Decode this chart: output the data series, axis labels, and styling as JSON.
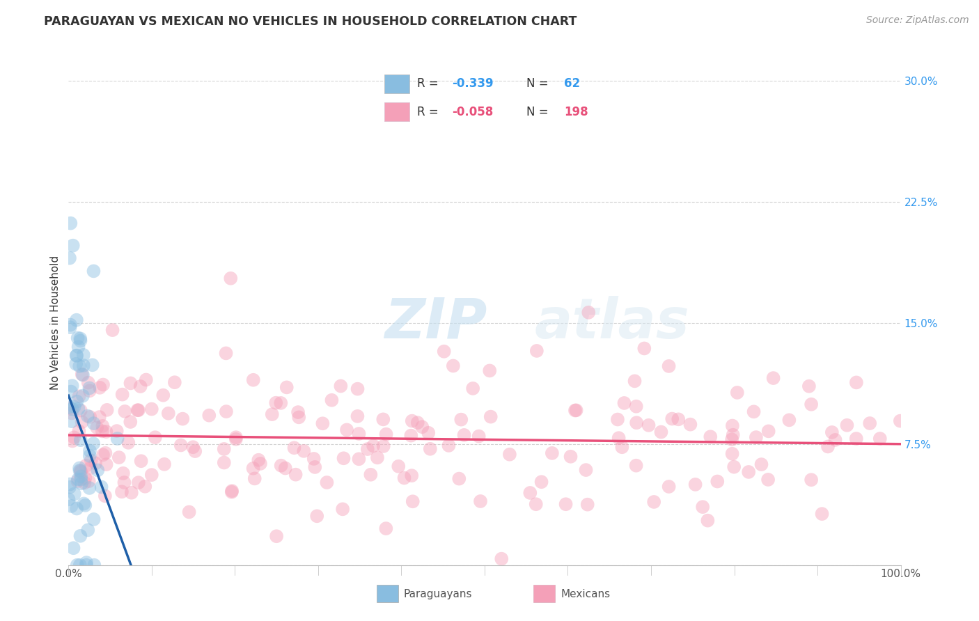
{
  "title": "PARAGUAYAN VS MEXICAN NO VEHICLES IN HOUSEHOLD CORRELATION CHART",
  "source": "Source: ZipAtlas.com",
  "ylabel": "No Vehicles in Household",
  "watermark_zip": "ZIP",
  "watermark_atlas": "atlas",
  "legend": {
    "blue_R": "-0.339",
    "blue_N": "62",
    "pink_R": "-0.058",
    "pink_N": "198"
  },
  "xlim": [
    0.0,
    100.0
  ],
  "ylim": [
    0.0,
    0.3
  ],
  "yticks": [
    0.0,
    0.075,
    0.15,
    0.225,
    0.3
  ],
  "ytick_labels": [
    "",
    "7.5%",
    "15.0%",
    "22.5%",
    "30.0%"
  ],
  "xticks": [
    0,
    10,
    20,
    30,
    40,
    50,
    60,
    70,
    80,
    90,
    100
  ],
  "xtick_labels": [
    "0.0%",
    "",
    "",
    "",
    "",
    "",
    "",
    "",
    "",
    "",
    "100.0%"
  ],
  "blue_color": "#89bde0",
  "pink_color": "#f4a0b8",
  "blue_line_color": "#1e5fa8",
  "pink_line_color": "#e8507a",
  "background_color": "#ffffff",
  "blue_line_x": [
    0.0,
    7.5
  ],
  "blue_line_y": [
    0.105,
    0.0
  ],
  "pink_line_x": [
    0.0,
    100.0
  ],
  "pink_line_y": [
    0.0805,
    0.075
  ],
  "title_fontsize": 12.5,
  "source_fontsize": 10,
  "axis_label_fontsize": 11,
  "tick_fontsize": 11,
  "scatter_size": 200,
  "scatter_alpha": 0.45,
  "grid_color": "#c8c8c8",
  "grid_style": "--",
  "grid_alpha": 0.8
}
